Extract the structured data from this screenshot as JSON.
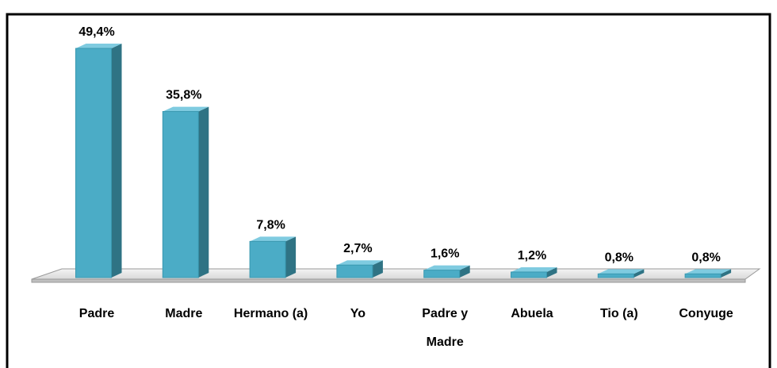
{
  "chart_data": {
    "type": "bar3d",
    "categories": [
      "Padre",
      "Madre",
      "Hermano (a)",
      "Yo",
      "Padre y Madre",
      "Abuela",
      "Tio (a)",
      "Conyuge"
    ],
    "values": [
      49.4,
      35.8,
      7.8,
      2.7,
      1.6,
      1.2,
      0.8,
      0.8
    ],
    "value_labels": [
      "49,4%",
      "35,8%",
      "7,8%",
      "2,7%",
      "1,6%",
      "1,2%",
      "0,8%",
      "0,8%"
    ],
    "color": "#4bacc6"
  }
}
